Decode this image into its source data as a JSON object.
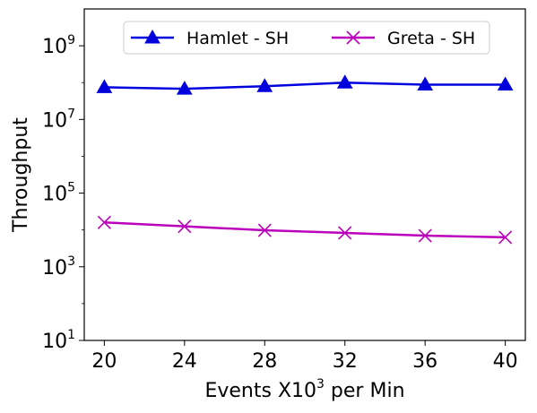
{
  "chart_data": {
    "type": "line",
    "title": "",
    "xlabel": {
      "prefix": "Events X10",
      "superscript": "3",
      "suffix": " per Min"
    },
    "ylabel": "Throughput",
    "yscale": "log",
    "categories": [
      20,
      24,
      28,
      32,
      36,
      40
    ],
    "xlim": [
      19,
      41
    ],
    "ylim_exponent": [
      1,
      10
    ],
    "y_ticks": [
      {
        "base": "10",
        "exp": "1",
        "value": 10
      },
      {
        "base": "10",
        "exp": "3",
        "value": 1000
      },
      {
        "base": "10",
        "exp": "5",
        "value": 100000
      },
      {
        "base": "10",
        "exp": "7",
        "value": 10000000
      },
      {
        "base": "10",
        "exp": "9",
        "value": 1000000000
      }
    ],
    "grid": false,
    "legend_position": "top-center",
    "series": [
      {
        "name": "Hamlet - SH",
        "color": "#0000dd",
        "marker": "triangle",
        "values": [
          75000000,
          68000000,
          80000000,
          100000000,
          88000000,
          88000000
        ]
      },
      {
        "name": "Greta - SH",
        "color": "#bb00bb",
        "marker": "x",
        "values": [
          16000,
          12500,
          9800,
          8300,
          7000,
          6300
        ]
      }
    ]
  }
}
